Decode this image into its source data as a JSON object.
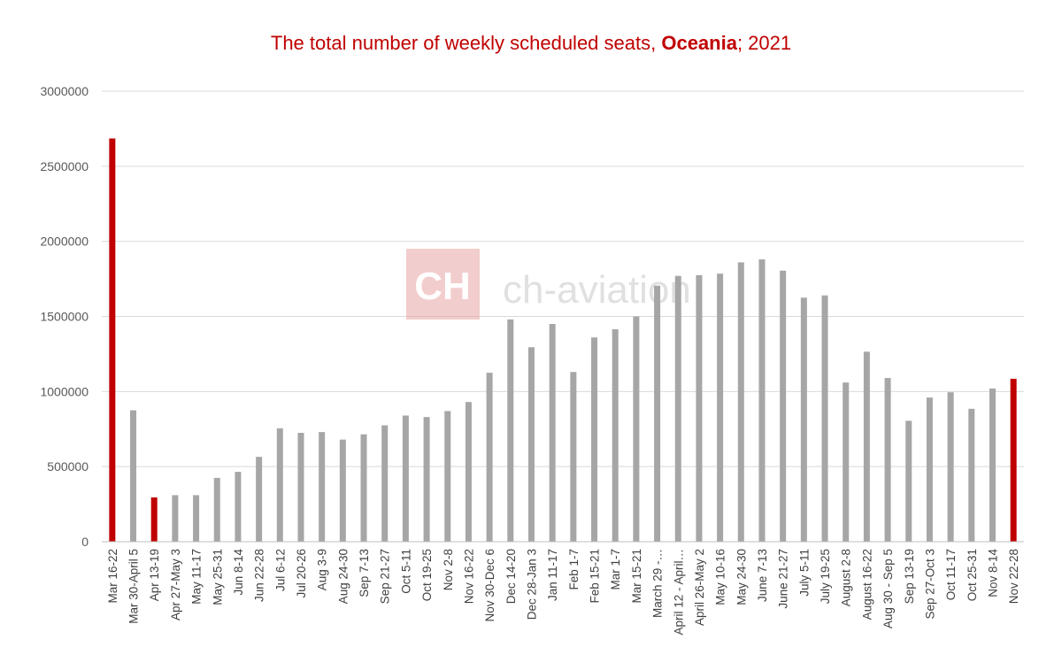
{
  "chart_data": {
    "type": "bar",
    "title_prefix": "The total number of weekly scheduled seats, ",
    "title_bold": "Oceania",
    "title_suffix": "; 2021",
    "xlabel": "",
    "ylabel": "",
    "ylim": [
      0,
      3000000
    ],
    "yticks": [
      0,
      500000,
      1000000,
      1500000,
      2000000,
      2500000,
      3000000
    ],
    "grid": true,
    "colors": {
      "default": "#a6a6a6",
      "highlight": "#c00000"
    },
    "highlight_indices": [
      0,
      2,
      43
    ],
    "categories": [
      "Mar 16-22",
      "Mar 30-April 5",
      "Apr 13-19",
      "Apr 27-May 3",
      "May 11-17",
      "May 25-31",
      "Jun 8-14",
      "Jun 22-28",
      "Jul 6-12",
      "Jul 20-26",
      "Aug 3-9",
      "Aug 24-30",
      "Sep 7-13",
      "Sep 21-27",
      "Oct 5-11",
      "Oct 19-25",
      "Nov 2-8",
      "Nov 16-22",
      "Nov 30-Dec 6",
      "Dec 14-20",
      "Dec 28-Jan 3",
      "Jan 11-17",
      "Feb 1-7",
      "Feb 15-21",
      "Mar 1-7",
      "Mar 15-21",
      "March 29 -…",
      "April 12 - April…",
      "April 26-May 2",
      "May 10-16",
      "May 24-30",
      "June 7-13",
      "June 21-27",
      "July 5-11",
      "July 19-25",
      "August 2-8",
      "August 16-22",
      "Aug 30 - Sep 5",
      "Sep 13-19",
      "Sep 27-Oct 3",
      "Oct 11-17",
      "Oct 25-31",
      "Nov 8-14",
      "Nov 22-28"
    ],
    "values": [
      2685000,
      875000,
      295000,
      310000,
      310000,
      425000,
      465000,
      565000,
      755000,
      725000,
      730000,
      680000,
      715000,
      775000,
      840000,
      830000,
      870000,
      930000,
      1125000,
      1480000,
      1295000,
      1450000,
      1130000,
      1360000,
      1415000,
      1500000,
      1705000,
      1770000,
      1775000,
      1785000,
      1860000,
      1880000,
      1805000,
      1625000,
      1640000,
      1060000,
      1265000,
      1090000,
      805000,
      960000,
      995000,
      885000,
      1020000,
      1085000
    ]
  },
  "watermark": {
    "logo_letters": "CH",
    "text": "ch-aviation"
  }
}
